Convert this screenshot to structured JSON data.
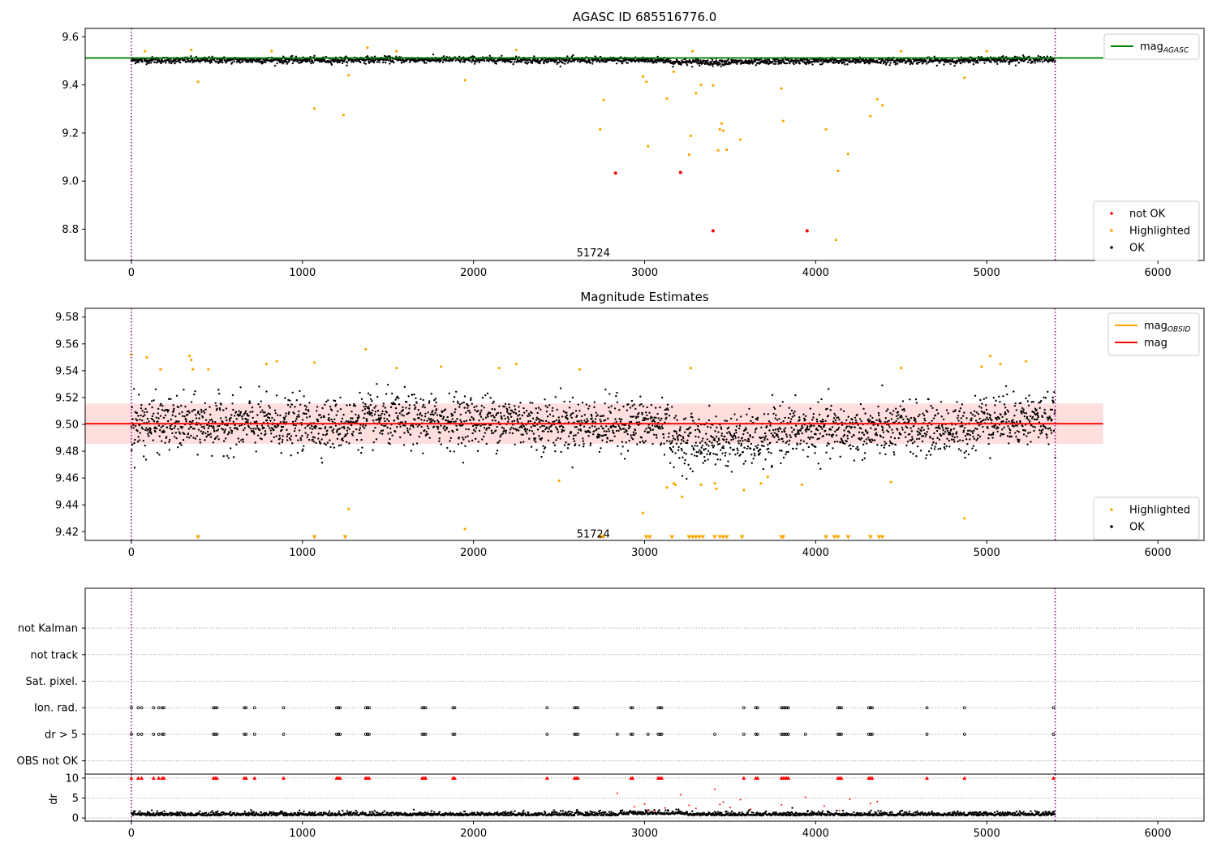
{
  "colors": {
    "ok": "#000000",
    "highlighted": "#ffa500",
    "not_ok": "#ff0000",
    "mag_agasc_line": "#008000",
    "mag_line": "#ff0000",
    "mag_obsid_line": "#ffa500",
    "mag_band": "#ffc8c8",
    "obs_boundary": "#800080"
  },
  "chart_data": [
    {
      "type": "scatter",
      "title": "AGASC ID 685516776.0",
      "xlim": [
        -270,
        6270
      ],
      "ylim": [
        8.67,
        9.635
      ],
      "xticks": [
        0,
        1000,
        2000,
        3000,
        4000,
        5000,
        6000
      ],
      "yticks": [
        8.8,
        9.0,
        9.2,
        9.4,
        9.6
      ],
      "grid": false,
      "legend_placement": [
        "top-right",
        "bottom-right"
      ],
      "hline": {
        "name": "mag",
        "name_sub": "AGASC",
        "y": 9.512
      },
      "vlines": [
        0,
        5400
      ],
      "annotation": {
        "text": "51724",
        "x": 2700,
        "y": 8.7
      },
      "ok_band": {
        "x_range": [
          0,
          5400
        ],
        "y_center": 9.503,
        "y_spread": 0.012
      },
      "series": [
        {
          "name": "not OK",
          "points": [
            [
              2830,
              9.033
            ],
            [
              3210,
              9.036
            ],
            [
              3400,
              8.793
            ],
            [
              3950,
              8.793
            ]
          ]
        },
        {
          "name": "Highlighted",
          "points": [
            [
              390,
              9.413
            ],
            [
              1070,
              9.302
            ],
            [
              1240,
              9.275
            ],
            [
              1270,
              9.44
            ],
            [
              1950,
              9.42
            ],
            [
              2740,
              9.215
            ],
            [
              2760,
              9.337
            ],
            [
              2990,
              9.435
            ],
            [
              3010,
              9.413
            ],
            [
              3020,
              9.145
            ],
            [
              3130,
              9.343
            ],
            [
              3170,
              9.455
            ],
            [
              3260,
              9.11
            ],
            [
              3270,
              9.188
            ],
            [
              3300,
              9.365
            ],
            [
              3330,
              9.4
            ],
            [
              3400,
              9.398
            ],
            [
              3430,
              9.128
            ],
            [
              3440,
              9.215
            ],
            [
              3450,
              9.24
            ],
            [
              3460,
              9.21
            ],
            [
              3480,
              9.13
            ],
            [
              3560,
              9.173
            ],
            [
              3800,
              9.385
            ],
            [
              3810,
              9.25
            ],
            [
              4060,
              9.215
            ],
            [
              4120,
              8.755
            ],
            [
              4130,
              9.043
            ],
            [
              4190,
              9.113
            ],
            [
              4320,
              9.27
            ],
            [
              4360,
              9.34
            ],
            [
              4390,
              9.315
            ],
            [
              4870,
              9.43
            ],
            [
              80,
              9.54
            ],
            [
              350,
              9.545
            ],
            [
              820,
              9.54
            ],
            [
              1380,
              9.555
            ],
            [
              1550,
              9.54
            ],
            [
              2250,
              9.545
            ],
            [
              3280,
              9.54
            ],
            [
              4500,
              9.54
            ],
            [
              5000,
              9.54
            ]
          ]
        },
        {
          "name": "OK",
          "points": []
        }
      ]
    },
    {
      "type": "scatter",
      "title": "Magnitude Estimates",
      "xlim": [
        -270,
        6270
      ],
      "ylim": [
        9.4135,
        9.5865
      ],
      "xticks": [
        0,
        1000,
        2000,
        3000,
        4000,
        5000,
        6000
      ],
      "yticks": [
        9.42,
        9.44,
        9.46,
        9.48,
        9.5,
        9.52,
        9.54,
        9.56,
        9.58
      ],
      "grid": false,
      "legend_placement": [
        "top-right",
        "bottom-right"
      ],
      "lines": [
        {
          "name": "mag",
          "name_sub": "OBSID",
          "x_range": [
            0,
            5400
          ],
          "y": 9.5005
        },
        {
          "name": "mag",
          "x_range": [
            -270,
            5680
          ],
          "y": 9.5005
        }
      ],
      "band": {
        "x_range": [
          -270,
          5680
        ],
        "y_range": [
          9.4855,
          9.5155
        ]
      },
      "vlines": [
        0,
        5400
      ],
      "annotation": {
        "text": "51724",
        "x": 2700,
        "y": 9.418
      },
      "ok_band": {
        "x_range": [
          0,
          5400
        ],
        "y_center": 9.5,
        "y_spread": 0.015
      },
      "series": [
        {
          "name": "Highlighted",
          "points": [
            [
              0,
              9.552
            ],
            [
              90,
              9.55
            ],
            [
              170,
              9.541
            ],
            [
              340,
              9.551
            ],
            [
              350,
              9.548
            ],
            [
              360,
              9.541
            ],
            [
              450,
              9.541
            ],
            [
              790,
              9.545
            ],
            [
              850,
              9.547
            ],
            [
              1070,
              9.546
            ],
            [
              1370,
              9.556
            ],
            [
              1550,
              9.542
            ],
            [
              1810,
              9.543
            ],
            [
              1950,
              9.422
            ],
            [
              2150,
              9.542
            ],
            [
              2250,
              9.545
            ],
            [
              2500,
              9.458
            ],
            [
              2620,
              9.541
            ],
            [
              2990,
              9.434
            ],
            [
              3130,
              9.453
            ],
            [
              3170,
              9.456
            ],
            [
              3180,
              9.455
            ],
            [
              3220,
              9.446
            ],
            [
              3270,
              9.542
            ],
            [
              3330,
              9.455
            ],
            [
              3410,
              9.456
            ],
            [
              3420,
              9.452
            ],
            [
              3580,
              9.451
            ],
            [
              3680,
              9.456
            ],
            [
              3720,
              9.461
            ],
            [
              3920,
              9.455
            ],
            [
              4440,
              9.457
            ],
            [
              4500,
              9.542
            ],
            [
              4870,
              9.43
            ],
            [
              4970,
              9.543
            ],
            [
              5020,
              9.551
            ],
            [
              5080,
              9.545
            ],
            [
              5230,
              9.547
            ],
            [
              1270,
              9.437
            ]
          ]
        },
        {
          "name": "OK",
          "points": []
        }
      ],
      "below_range_markers": [
        390,
        1070,
        1250,
        2740,
        2760,
        3010,
        3030,
        3160,
        3260,
        3280,
        3300,
        3320,
        3340,
        3410,
        3440,
        3460,
        3480,
        3570,
        3800,
        3810,
        4060,
        4110,
        4130,
        4190,
        4320,
        4370,
        4390
      ]
    },
    {
      "type": "scatter",
      "xlim": [
        -270,
        6270
      ],
      "ylim": [
        -0.5,
        6.5
      ],
      "yticklabels": [
        "OBS not OK",
        "dr > 5",
        "Ion. rad.",
        "Sat. pixel.",
        "not track",
        "not Kalman"
      ],
      "grid": "horizontal dotted",
      "vlines": [
        0,
        5400
      ],
      "flag_times": [
        0,
        40,
        60,
        130,
        160,
        180,
        190,
        480,
        490,
        500,
        660,
        670,
        720,
        890,
        1200,
        1210,
        1220,
        1370,
        1380,
        1390,
        1700,
        1710,
        1720,
        1880,
        1890,
        2430,
        2590,
        2600,
        2610,
        2920,
        2930,
        3080,
        3090,
        3100,
        3580,
        3650,
        3660,
        3800,
        3810,
        3820,
        3830,
        3840,
        4130,
        4140,
        4150,
        4310,
        4320,
        4330,
        4650,
        4870,
        5390
      ],
      "dr_gt5_only": [
        2840,
        3020,
        3410,
        3940
      ]
    },
    {
      "type": "scatter",
      "ylabel": "dr",
      "xlim": [
        -270,
        6270
      ],
      "ylim": [
        -0.8,
        11
      ],
      "xticks": [
        0,
        1000,
        2000,
        3000,
        4000,
        5000,
        6000
      ],
      "yticks": [
        0,
        5,
        10
      ],
      "grid": "horizontal dotted",
      "vlines": [
        0,
        5400
      ],
      "clip_value": 10,
      "clipped_times": [
        0,
        40,
        60,
        130,
        160,
        180,
        190,
        480,
        490,
        500,
        660,
        670,
        720,
        890,
        1200,
        1210,
        1220,
        1370,
        1380,
        1390,
        1700,
        1710,
        1720,
        1880,
        1890,
        2430,
        2590,
        2600,
        2610,
        2920,
        2930,
        3080,
        3090,
        3100,
        3580,
        3650,
        3660,
        3800,
        3810,
        3820,
        3830,
        3840,
        4130,
        4140,
        4150,
        4310,
        4320,
        4330,
        4650,
        4870,
        5390
      ],
      "outliers": [
        [
          2840,
          6.2
        ],
        [
          2940,
          2.8
        ],
        [
          3000,
          3.5
        ],
        [
          3020,
          2.0
        ],
        [
          3060,
          1.8
        ],
        [
          3120,
          2.5
        ],
        [
          3210,
          5.8
        ],
        [
          3260,
          3.2
        ],
        [
          3300,
          2.4
        ],
        [
          3410,
          7.2
        ],
        [
          3440,
          3.4
        ],
        [
          3460,
          4.0
        ],
        [
          3500,
          2.6
        ],
        [
          3560,
          4.6
        ],
        [
          3620,
          2.2
        ],
        [
          3800,
          3.3
        ],
        [
          3940,
          5.2
        ],
        [
          4050,
          3.0
        ],
        [
          4140,
          1.9
        ],
        [
          4200,
          4.7
        ],
        [
          4320,
          3.6
        ],
        [
          4360,
          4.1
        ]
      ]
    }
  ],
  "legends": [
    {
      "items": [
        {
          "label": "mag",
          "sub": "AGASC",
          "kind": "line",
          "color": "#008000"
        }
      ]
    },
    {
      "items": [
        {
          "label": "not OK",
          "kind": "dot",
          "color": "#ff0000"
        },
        {
          "label": "Highlighted",
          "kind": "dot",
          "color": "#ffa500"
        },
        {
          "label": "OK",
          "kind": "dot",
          "color": "#000000"
        }
      ]
    },
    {
      "items": [
        {
          "label": "mag",
          "sub": "OBSID",
          "kind": "line",
          "color": "#ffa500"
        },
        {
          "label": "mag",
          "kind": "line",
          "color": "#ff0000"
        }
      ]
    },
    {
      "items": [
        {
          "label": "Highlighted",
          "kind": "dot",
          "color": "#ffa500"
        },
        {
          "label": "OK",
          "kind": "dot",
          "color": "#000000"
        }
      ]
    }
  ]
}
